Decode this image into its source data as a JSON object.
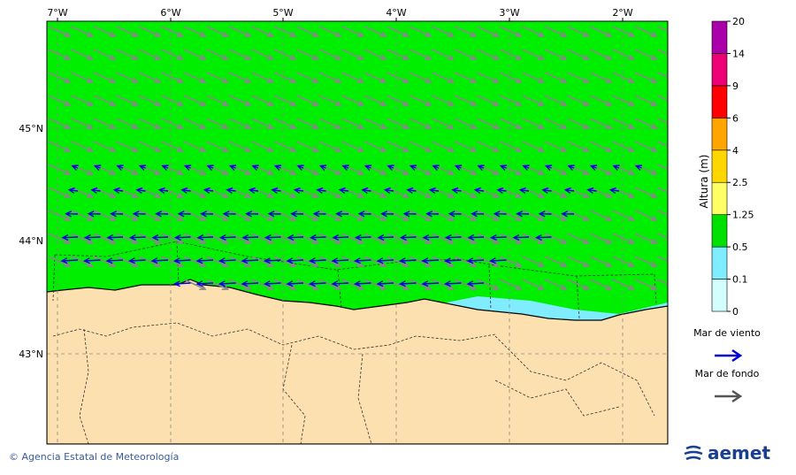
{
  "map": {
    "lon_labels": [
      "7°W",
      "6°W",
      "5°W",
      "4°W",
      "3°W",
      "2°W"
    ],
    "lat_labels": [
      "45°N",
      "44°N",
      "43°N"
    ],
    "colorbar": {
      "label": "Altura (m)",
      "ticks": [
        0,
        0.1,
        0.5,
        1.25,
        2.5,
        4,
        6,
        9,
        14,
        20
      ],
      "colors": [
        "#d4fdfd",
        "#80ecff",
        "#00e000",
        "#ffff66",
        "#ffd700",
        "#ffa500",
        "#ff0000",
        "#ee0077",
        "#aa00aa"
      ]
    },
    "legend": [
      {
        "label": "Mar de viento",
        "color": "#0000dd"
      },
      {
        "label": "Mar de fondo",
        "color": "#555555"
      }
    ],
    "footer": {
      "credit": "© Agencia Estatal de Meteorología",
      "logo": "aemet"
    }
  }
}
